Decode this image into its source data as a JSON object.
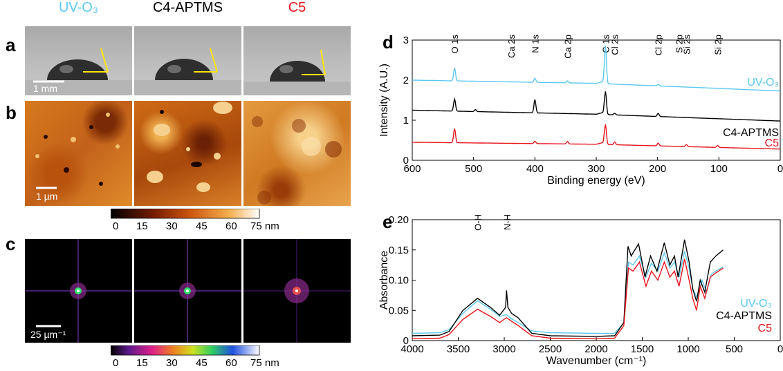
{
  "panels": {
    "a": "a",
    "b": "b",
    "c": "c",
    "d": "d",
    "e": "e"
  },
  "column_titles": [
    {
      "text": "UV-O₃",
      "color": "#5bc8f0"
    },
    {
      "text": "C4-APTMS",
      "color": "#000000"
    },
    {
      "text": "C5",
      "color": "#e8141c"
    }
  ],
  "scale_bars": {
    "a": "1 mm",
    "b": "1 µm",
    "c": "25 µm⁻¹"
  },
  "colorbar_afm": {
    "ticks": [
      "0",
      "15",
      "30",
      "45",
      "60",
      "75 nm"
    ],
    "colormap": "afmhot"
  },
  "colorbar_fft": {
    "ticks": [
      "0",
      "15",
      "30",
      "45",
      "60",
      "75 nm"
    ],
    "colormap": "rainbow"
  },
  "chart_data": [
    {
      "type": "line",
      "panel": "d",
      "xlabel": "Binding energy (eV)",
      "ylabel": "Intensity (A.U.)",
      "xlim": [
        600,
        0
      ],
      "ylim": [
        0,
        3
      ],
      "x_ticks": [
        "600",
        "500",
        "400",
        "300",
        "200",
        "100",
        "0"
      ],
      "y_ticks": [
        "0",
        "1",
        "2",
        "3"
      ],
      "peak_labels": [
        {
          "text": "O 1s",
          "x": 531
        },
        {
          "text": "Ca 2s",
          "x": 439
        },
        {
          "text": "N 1s",
          "x": 400
        },
        {
          "text": "Ca 2p",
          "x": 347
        },
        {
          "text": "C 1s",
          "x": 285
        },
        {
          "text": "Cl 2s",
          "x": 270
        },
        {
          "text": "Cl 2p",
          "x": 199
        },
        {
          "text": "S 2p",
          "x": 165
        },
        {
          "text": "Si 2s",
          "x": 153
        },
        {
          "text": "Si 2p",
          "x": 102
        }
      ],
      "series": [
        {
          "name": "UV-O₃",
          "color": "#5bc8f0",
          "baseline": [
            [
              600,
              2.0
            ],
            [
              300,
              1.92
            ],
            [
              0,
              1.73
            ]
          ],
          "peaks": [
            {
              "x": 531,
              "h": 0.32
            },
            {
              "x": 400,
              "h": 0.1
            },
            {
              "x": 347,
              "h": 0.05
            },
            {
              "x": 285,
              "h": 0.95
            },
            {
              "x": 199,
              "h": 0.04
            }
          ]
        },
        {
          "name": "C4-APTMS",
          "color": "#000000",
          "baseline": [
            [
              600,
              1.25
            ],
            [
              300,
              1.15
            ],
            [
              0,
              0.98
            ]
          ],
          "peaks": [
            {
              "x": 531,
              "h": 0.3
            },
            {
              "x": 497,
              "h": 0.05
            },
            {
              "x": 400,
              "h": 0.33
            },
            {
              "x": 285,
              "h": 0.58
            },
            {
              "x": 270,
              "h": 0.04
            },
            {
              "x": 199,
              "h": 0.08
            }
          ]
        },
        {
          "name": "C5",
          "color": "#e8141c",
          "baseline": [
            [
              600,
              0.45
            ],
            [
              300,
              0.4
            ],
            [
              0,
              0.28
            ]
          ],
          "peaks": [
            {
              "x": 531,
              "h": 0.35
            },
            {
              "x": 400,
              "h": 0.06
            },
            {
              "x": 347,
              "h": 0.06
            },
            {
              "x": 285,
              "h": 0.5
            },
            {
              "x": 270,
              "h": 0.07
            },
            {
              "x": 199,
              "h": 0.07
            },
            {
              "x": 153,
              "h": 0.05
            },
            {
              "x": 102,
              "h": 0.05
            }
          ]
        }
      ]
    },
    {
      "type": "line",
      "panel": "e",
      "xlabel": "Wavenumber (cm⁻¹)",
      "ylabel": "Absorbance",
      "xlim": [
        4000,
        0
      ],
      "ylim": [
        0,
        0.2
      ],
      "x_ticks": [
        "4000",
        "3500",
        "3000",
        "2500",
        "2000",
        "1500",
        "1000",
        "500",
        "0"
      ],
      "y_ticks": [
        "0",
        "0.05",
        "0.10",
        "0.15",
        "0.20"
      ],
      "peak_labels": [
        {
          "text": "O-H",
          "x": 3290
        },
        {
          "text": "N-H",
          "x": 2970
        }
      ],
      "series": [
        {
          "name": "UV-O₃",
          "color": "#5bc8f0",
          "points": [
            [
              4000,
              0.012
            ],
            [
              3700,
              0.013
            ],
            [
              3600,
              0.018
            ],
            [
              3450,
              0.045
            ],
            [
              3290,
              0.066
            ],
            [
              3150,
              0.052
            ],
            [
              3050,
              0.04
            ],
            [
              2975,
              0.043
            ],
            [
              2920,
              0.036
            ],
            [
              2850,
              0.03
            ],
            [
              2700,
              0.016
            ],
            [
              2500,
              0.013
            ],
            [
              2000,
              0.012
            ],
            [
              1800,
              0.012
            ],
            [
              1700,
              0.03
            ],
            [
              1650,
              0.13
            ],
            [
              1600,
              0.125
            ],
            [
              1530,
              0.14
            ],
            [
              1460,
              0.105
            ],
            [
              1400,
              0.128
            ],
            [
              1330,
              0.115
            ],
            [
              1260,
              0.145
            ],
            [
              1200,
              0.12
            ],
            [
              1150,
              0.13
            ],
            [
              1100,
              0.105
            ],
            [
              1040,
              0.148
            ],
            [
              990,
              0.12
            ],
            [
              950,
              0.085
            ],
            [
              900,
              0.07
            ],
            [
              850,
              0.1
            ],
            [
              800,
              0.08
            ],
            [
              750,
              0.11
            ],
            [
              700,
              0.115
            ],
            [
              620,
              0.122
            ]
          ]
        },
        {
          "name": "C4-APTMS",
          "color": "#000000",
          "points": [
            [
              4000,
              0.008
            ],
            [
              3700,
              0.009
            ],
            [
              3600,
              0.015
            ],
            [
              3450,
              0.05
            ],
            [
              3290,
              0.07
            ],
            [
              3150,
              0.055
            ],
            [
              3050,
              0.042
            ],
            [
              2985,
              0.055
            ],
            [
              2975,
              0.083
            ],
            [
              2960,
              0.055
            ],
            [
              2920,
              0.045
            ],
            [
              2850,
              0.038
            ],
            [
              2700,
              0.012
            ],
            [
              2500,
              0.008
            ],
            [
              2000,
              0.007
            ],
            [
              1800,
              0.008
            ],
            [
              1700,
              0.03
            ],
            [
              1655,
              0.156
            ],
            [
              1620,
              0.14
            ],
            [
              1540,
              0.16
            ],
            [
              1470,
              0.105
            ],
            [
              1410,
              0.14
            ],
            [
              1340,
              0.115
            ],
            [
              1260,
              0.162
            ],
            [
              1200,
              0.125
            ],
            [
              1150,
              0.14
            ],
            [
              1110,
              0.105
            ],
            [
              1040,
              0.167
            ],
            [
              990,
              0.13
            ],
            [
              950,
              0.085
            ],
            [
              910,
              0.065
            ],
            [
              870,
              0.1
            ],
            [
              820,
              0.08
            ],
            [
              760,
              0.13
            ],
            [
              700,
              0.14
            ],
            [
              620,
              0.15
            ]
          ]
        },
        {
          "name": "C5",
          "color": "#e8141c",
          "points": [
            [
              4000,
              0.003
            ],
            [
              3700,
              0.004
            ],
            [
              3600,
              0.01
            ],
            [
              3450,
              0.035
            ],
            [
              3290,
              0.052
            ],
            [
              3150,
              0.04
            ],
            [
              3050,
              0.03
            ],
            [
              2975,
              0.038
            ],
            [
              2920,
              0.032
            ],
            [
              2850,
              0.025
            ],
            [
              2700,
              0.008
            ],
            [
              2500,
              0.004
            ],
            [
              2000,
              0.003
            ],
            [
              1800,
              0.004
            ],
            [
              1700,
              0.025
            ],
            [
              1650,
              0.12
            ],
            [
              1600,
              0.115
            ],
            [
              1530,
              0.13
            ],
            [
              1460,
              0.09
            ],
            [
              1400,
              0.115
            ],
            [
              1330,
              0.1
            ],
            [
              1260,
              0.13
            ],
            [
              1200,
              0.105
            ],
            [
              1150,
              0.115
            ],
            [
              1100,
              0.09
            ],
            [
              1040,
              0.135
            ],
            [
              990,
              0.1
            ],
            [
              950,
              0.07
            ],
            [
              910,
              0.05
            ],
            [
              870,
              0.09
            ],
            [
              820,
              0.07
            ],
            [
              760,
              0.105
            ],
            [
              700,
              0.112
            ],
            [
              620,
              0.12
            ]
          ]
        }
      ]
    }
  ]
}
